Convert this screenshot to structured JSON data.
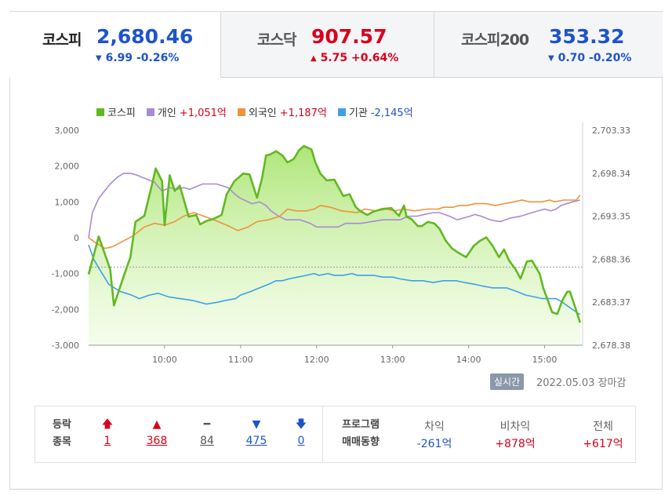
{
  "tabs": [
    {
      "name": "코스피",
      "price": "2,680.46",
      "change": "6.99 -0.26%",
      "direction": "down",
      "active": true
    },
    {
      "name": "코스닥",
      "price": "907.57",
      "change": "5.75 +0.64%",
      "direction": "up",
      "active": false
    },
    {
      "name": "코스피200",
      "price": "353.32",
      "change": "0.70 -0.20%",
      "direction": "down",
      "active": false
    }
  ],
  "legend": [
    {
      "label": "코스피",
      "value": "",
      "color": "#62b822"
    },
    {
      "label": "개인",
      "value": "+1,051억",
      "color": "#a98ad6"
    },
    {
      "label": "외국인",
      "value": "+1,187억",
      "color": "#f0923b"
    },
    {
      "label": "기관",
      "value": "-2,145억",
      "color": "#3ea0e6"
    }
  ],
  "chart_data": {
    "type": "line",
    "x_ticks": [
      "10:00",
      "11:00",
      "12:00",
      "13:00",
      "14:00",
      "15:00"
    ],
    "y_left_ticks": [
      "3,000",
      "2,000",
      "1,000",
      "0",
      "-1,000",
      "-2,000",
      "-3,000"
    ],
    "y_left_range": [
      -3000,
      3000
    ],
    "y_right_ticks": [
      "2,703.33",
      "2,698.34",
      "2,693.35",
      "2,688.36",
      "2,683.37",
      "2,678.38"
    ],
    "y_right_range": [
      2678.38,
      2703.33
    ],
    "reference_line": 2687.45,
    "x_range": [
      "09:00",
      "15:30"
    ],
    "series": [
      {
        "name": "코스피",
        "axis": "right",
        "color": "#62b822",
        "x": [
          "09:00",
          "09:08",
          "09:17",
          "09:20",
          "09:28",
          "09:33",
          "09:37",
          "09:44",
          "09:50",
          "09:53",
          "09:58",
          "10:00",
          "10:04",
          "10:08",
          "10:12",
          "10:19",
          "10:25",
          "10:28",
          "10:33",
          "10:38",
          "10:45",
          "10:49",
          "10:55",
          "11:02",
          "11:07",
          "11:13",
          "11:17",
          "11:20",
          "11:23",
          "11:28",
          "11:33",
          "11:37",
          "11:42",
          "11:46",
          "11:50",
          "11:56",
          "11:59",
          "12:03",
          "12:08",
          "12:14",
          "12:21",
          "12:26",
          "12:31",
          "12:35",
          "12:40",
          "12:45",
          "12:52",
          "12:59",
          "13:05",
          "13:09",
          "13:11",
          "13:15",
          "13:20",
          "13:23",
          "13:28",
          "13:33",
          "13:37",
          "13:42",
          "13:47",
          "13:51",
          "13:58",
          "14:04",
          "14:09",
          "14:14",
          "14:19",
          "14:24",
          "14:28",
          "14:32",
          "14:37",
          "14:41",
          "14:46",
          "14:50",
          "14:56",
          "14:59",
          "15:02",
          "15:06",
          "15:10",
          "15:14",
          "15:18",
          "15:20",
          "15:23",
          "15:28"
        ],
        "y": [
          2686.6,
          2691.0,
          2687.2,
          2683.0,
          2686.5,
          2688.6,
          2692.7,
          2693.4,
          2697.0,
          2698.9,
          2697.4,
          2692.3,
          2698.1,
          2696.3,
          2696.9,
          2693.3,
          2693.5,
          2692.4,
          2692.8,
          2693.0,
          2693.5,
          2695.9,
          2697.4,
          2698.3,
          2698.2,
          2695.5,
          2697.8,
          2700.4,
          2700.5,
          2700.9,
          2700.4,
          2699.6,
          2700.0,
          2701.0,
          2701.5,
          2701.1,
          2699.6,
          2698.3,
          2697.5,
          2697.6,
          2695.7,
          2695.9,
          2694.4,
          2693.9,
          2693.5,
          2693.9,
          2694.2,
          2694.3,
          2693.4,
          2694.6,
          2693.3,
          2693.0,
          2692.2,
          2692.2,
          2692.7,
          2692.5,
          2691.9,
          2690.5,
          2689.6,
          2689.2,
          2688.6,
          2689.9,
          2690.5,
          2690.9,
          2689.9,
          2688.6,
          2689.5,
          2688.2,
          2687.2,
          2686.1,
          2688.1,
          2688.2,
          2686.7,
          2685.0,
          2683.8,
          2682.2,
          2682.0,
          2683.6,
          2684.6,
          2684.6,
          2683.3,
          2681.0
        ]
      },
      {
        "name": "개인",
        "axis": "left",
        "color": "#a98ad6",
        "x": [
          "09:00",
          "09:03",
          "09:08",
          "09:17",
          "09:23",
          "09:28",
          "09:33",
          "09:38",
          "09:45",
          "09:52",
          "09:58",
          "10:04",
          "10:10",
          "10:15",
          "10:20",
          "10:30",
          "10:41",
          "10:50",
          "10:56",
          "11:00",
          "11:09",
          "11:15",
          "11:20",
          "11:24",
          "11:30",
          "11:36",
          "11:47",
          "11:55",
          "12:00",
          "12:05",
          "12:17",
          "12:23",
          "12:29",
          "12:35",
          "12:52",
          "13:06",
          "13:12",
          "13:19",
          "13:25",
          "13:32",
          "13:37",
          "13:45",
          "13:51",
          "13:56",
          "14:01",
          "14:05",
          "14:10",
          "14:17",
          "14:25",
          "14:33",
          "14:41",
          "14:50",
          "15:00",
          "15:05",
          "15:09",
          "15:13",
          "15:22",
          "15:28"
        ],
        "y": [
          0,
          700,
          1100,
          1500,
          1700,
          1800,
          1800,
          1750,
          1650,
          1550,
          1300,
          1400,
          1350,
          1400,
          1350,
          1500,
          1500,
          1400,
          1200,
          1100,
          950,
          1000,
          900,
          750,
          600,
          500,
          500,
          400,
          300,
          300,
          300,
          400,
          400,
          400,
          500,
          500,
          600,
          600,
          650,
          700,
          700,
          600,
          500,
          550,
          600,
          650,
          600,
          500,
          450,
          550,
          600,
          700,
          800,
          750,
          800,
          900,
          1000,
          1050
        ]
      },
      {
        "name": "외국인",
        "axis": "left",
        "color": "#f0923b",
        "x": [
          "09:00",
          "09:06",
          "09:13",
          "09:19",
          "09:27",
          "09:35",
          "09:44",
          "09:52",
          "10:00",
          "10:08",
          "10:15",
          "10:23",
          "10:31",
          "10:39",
          "10:49",
          "10:58",
          "11:06",
          "11:13",
          "11:22",
          "11:31",
          "11:37",
          "11:44",
          "11:52",
          "11:58",
          "12:03",
          "12:11",
          "12:20",
          "12:32",
          "12:38",
          "12:47",
          "12:55",
          "13:02",
          "13:09",
          "13:17",
          "13:27",
          "13:36",
          "13:40",
          "13:44",
          "13:48",
          "13:52",
          "13:59",
          "14:05",
          "14:09",
          "14:14",
          "14:21",
          "14:28",
          "14:36",
          "14:42",
          "14:48",
          "14:58",
          "15:04",
          "15:08",
          "15:15",
          "15:19",
          "15:25",
          "15:28"
        ],
        "y": [
          0,
          -150,
          -300,
          -250,
          -100,
          50,
          300,
          400,
          350,
          450,
          600,
          700,
          600,
          500,
          350,
          200,
          300,
          450,
          500,
          600,
          800,
          750,
          750,
          800,
          900,
          850,
          750,
          700,
          800,
          750,
          800,
          750,
          800,
          750,
          800,
          800,
          850,
          850,
          850,
          900,
          900,
          950,
          950,
          950,
          900,
          950,
          1000,
          1050,
          1000,
          1000,
          1050,
          1000,
          1050,
          1050,
          1050,
          1187
        ]
      },
      {
        "name": "기관",
        "axis": "left",
        "color": "#3ea0e6",
        "x": [
          "09:00",
          "09:04",
          "09:09",
          "09:16",
          "09:25",
          "09:34",
          "09:40",
          "09:48",
          "09:55",
          "10:03",
          "10:12",
          "10:22",
          "10:33",
          "10:42",
          "10:48",
          "10:56",
          "11:00",
          "11:08",
          "11:15",
          "11:22",
          "11:28",
          "11:33",
          "11:38",
          "11:45",
          "11:52",
          "11:58",
          "12:02",
          "12:09",
          "12:14",
          "12:21",
          "12:28",
          "12:32",
          "12:38",
          "12:45",
          "12:52",
          "13:00",
          "13:06",
          "13:15",
          "13:24",
          "13:32",
          "13:40",
          "13:50",
          "13:57",
          "14:05",
          "14:11",
          "14:19",
          "14:26",
          "14:30",
          "14:38",
          "14:45",
          "14:52",
          "14:58",
          "15:05",
          "15:09",
          "15:14",
          "15:20",
          "15:28"
        ],
        "y": [
          -200,
          -600,
          -900,
          -1300,
          -1500,
          -1600,
          -1700,
          -1600,
          -1550,
          -1650,
          -1700,
          -1750,
          -1850,
          -1800,
          -1750,
          -1700,
          -1600,
          -1500,
          -1400,
          -1300,
          -1200,
          -1200,
          -1150,
          -1100,
          -1050,
          -1000,
          -1050,
          -1000,
          -1050,
          -1050,
          -1000,
          -1050,
          -1050,
          -1050,
          -1100,
          -1100,
          -1150,
          -1200,
          -1200,
          -1250,
          -1200,
          -1200,
          -1250,
          -1300,
          -1350,
          -1400,
          -1400,
          -1400,
          -1500,
          -1600,
          -1650,
          -1700,
          -1700,
          -1700,
          -1800,
          -1950,
          -2145
        ]
      }
    ]
  },
  "status": {
    "realtime_label": "실시간",
    "date": "2022.05.03",
    "market_status": "장마감"
  },
  "updown": {
    "label": [
      "등락",
      "종목"
    ],
    "items": [
      {
        "icon": "arrow-up-bold-icon",
        "symbol": "🡅",
        "value": "1",
        "color": "#d9001b"
      },
      {
        "icon": "triangle-up-icon",
        "symbol": "▲",
        "value": "368",
        "color": "#d9001b"
      },
      {
        "icon": "dash-icon",
        "symbol": "━",
        "value": "84",
        "color": "#555555"
      },
      {
        "icon": "triangle-down-icon",
        "symbol": "▼",
        "value": "475",
        "color": "#1e54c9"
      },
      {
        "icon": "arrow-down-bold-icon",
        "symbol": "🡇",
        "value": "0",
        "color": "#1e54c9"
      }
    ]
  },
  "program": {
    "label": [
      "프로그램",
      "매매동향"
    ],
    "items": [
      {
        "header": "차익",
        "value": "-261억",
        "color": "#1e54c9"
      },
      {
        "header": "비차익",
        "value": "+878억",
        "color": "#d9001b"
      },
      {
        "header": "전체",
        "value": "+617억",
        "color": "#d9001b"
      }
    ]
  }
}
